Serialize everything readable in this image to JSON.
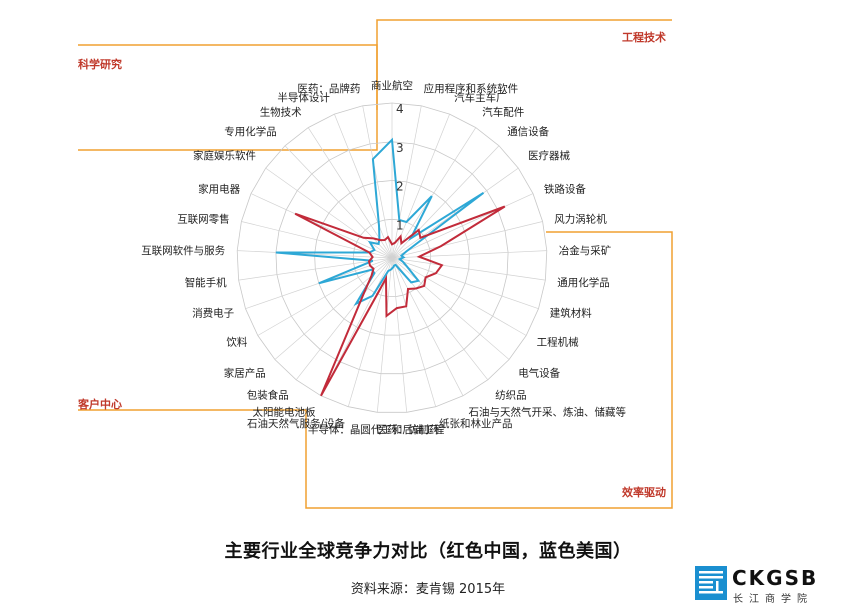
{
  "chart_data": {
    "type": "radar",
    "title": "主要行业全球竞争力对比（红色中国，蓝色美国）",
    "source": "资料来源：麦肯锡 2015年",
    "rlim": [
      0,
      4
    ],
    "ticks": [
      "1",
      "2",
      "3",
      "4"
    ],
    "categories": [
      "商业航空",
      "应用程序和系统软件",
      "汽车主车厂",
      "汽车配件",
      "通信设备",
      "医疗器械",
      "铁路设备",
      "风力涡轮机",
      "冶金与采矿",
      "通用化学品",
      "建筑材料",
      "工程机械",
      "电气设备",
      "纺织品",
      "石油与天然气开采、炼油、储藏等",
      "纸张和林业产品",
      "医药：仿制药",
      "半导体：晶圆代工和后端工程",
      "石油天然气服务/设备",
      "太阳能电池板",
      "包装食品",
      "家居产品",
      "饮料",
      "消费电子",
      "智能手机",
      "互联网软件与服务",
      "互联网零售",
      "家用电器",
      "家庭娱乐软件",
      "专用化学品",
      "生物技术",
      "半导体设计",
      "医药：品牌药"
    ],
    "series": [
      {
        "color": "#c22b3a",
        "values": [
          0.35,
          0.4,
          0.6,
          0.45,
          1.0,
          0.9,
          3.2,
          1.3,
          0.7,
          1.3,
          1.2,
          1.0,
          1.1,
          1.0,
          0.9,
          1.3,
          1.3,
          1.5,
          0.55,
          4.0,
          1.2,
          0.7,
          0.55,
          0.6,
          0.6,
          0.5,
          0.6,
          2.75,
          0.9,
          0.7,
          0.55,
          0.5,
          0.55
        ]
      },
      {
        "color": "#2ea8d6",
        "values": [
          3.05,
          1.0,
          1.0,
          1.9,
          0.7,
          2.9,
          0.4,
          0.25,
          0.3,
          0.2,
          0.3,
          0.45,
          0.9,
          0.8,
          0.2,
          0.2,
          0.25,
          0.3,
          0.35,
          1.1,
          1.5,
          0.6,
          0.6,
          2.0,
          0.5,
          3.0,
          0.6,
          0.5,
          0.7,
          0.5,
          0.6,
          0.9,
          2.6
        ]
      }
    ],
    "quadrants": [
      "工程技术",
      "效率驱动",
      "客户中心",
      "科学研究"
    ]
  },
  "labels": {
    "title": "主要行业全球竞争力对比（红色中国，蓝色美国）",
    "source": "资料来源：麦肯锡 2015年",
    "logo_text": "CKGSB",
    "logo_sub": "长江商学院"
  },
  "colors": {
    "frame": "#f0a030",
    "grid": "#bbbbbb",
    "quadrant_label": "#c0392b"
  }
}
